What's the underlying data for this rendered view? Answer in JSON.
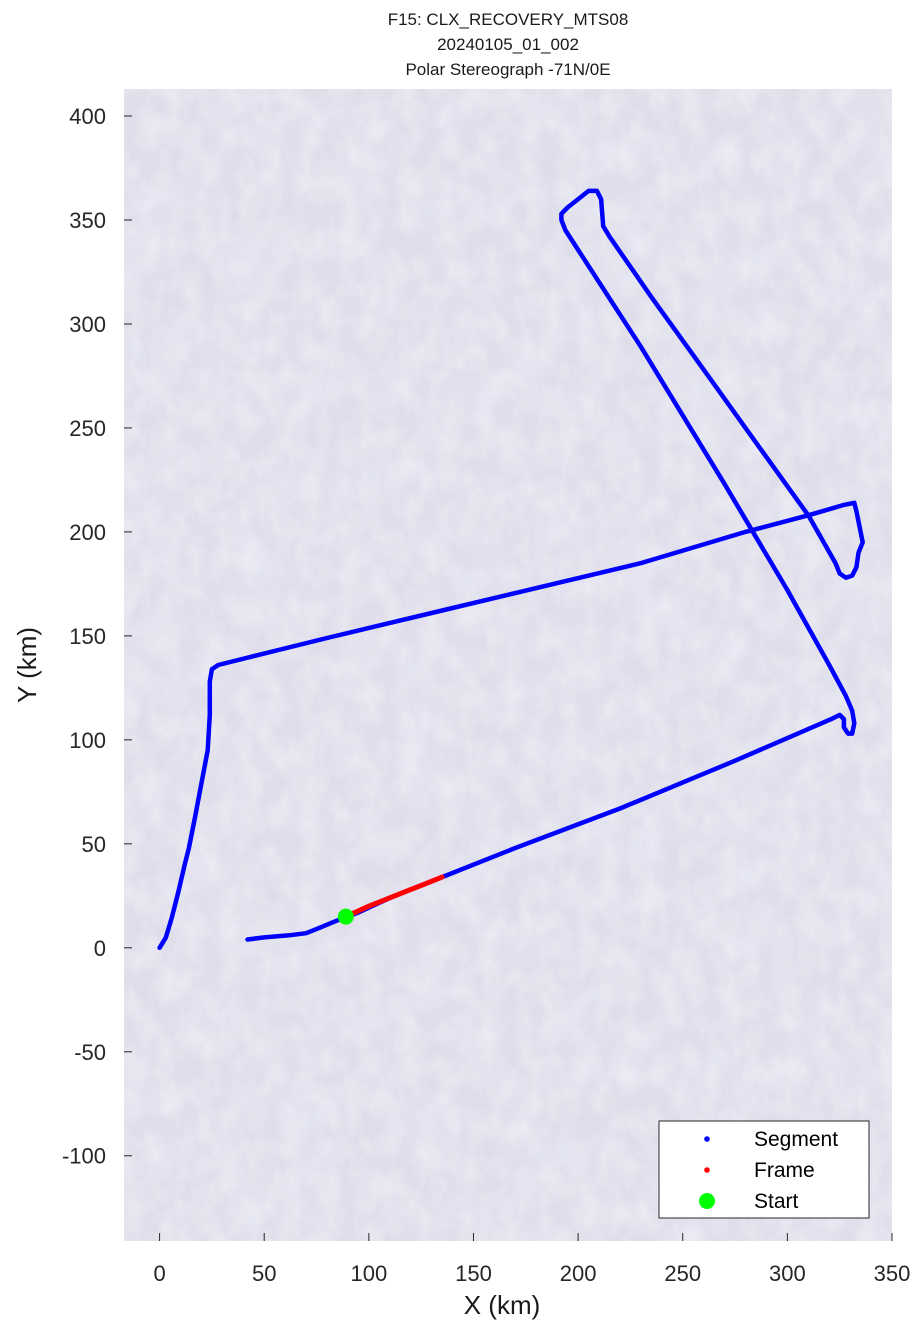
{
  "figure": {
    "title_lines": [
      "F15: CLX_RECOVERY_MTS08",
      "20240105_01_002",
      "Polar Stereograph -71N/0E"
    ],
    "xlabel": "X (km)",
    "ylabel": "Y (km)",
    "background": "satellite ice-sheet imagery (pale lavender-grey, mottled)"
  },
  "chart_data": {
    "type": "line",
    "title": "F15: CLX_RECOVERY_MTS08 / 20240105_01_002 / Polar Stereograph -71N/0E",
    "xlabel": "X (km)",
    "ylabel": "Y (km)",
    "xlim": [
      -17,
      350
    ],
    "ylim": [
      -141,
      413
    ],
    "xticks": [
      0,
      50,
      100,
      150,
      200,
      250,
      300,
      350
    ],
    "yticks": [
      -100,
      -50,
      0,
      50,
      100,
      150,
      200,
      250,
      300,
      350,
      400
    ],
    "grid": false,
    "legend_position": "bottom-right",
    "legend": [
      {
        "label": "Segment",
        "color": "#0000ff",
        "marker": "dot"
      },
      {
        "label": "Frame",
        "color": "#ff0000",
        "marker": "dot"
      },
      {
        "label": "Start",
        "color": "#00ff00",
        "marker": "large-dot"
      }
    ],
    "series": [
      {
        "name": "Segment",
        "color": "#0000ff",
        "points": [
          [
            0,
            0
          ],
          [
            3,
            5
          ],
          [
            6,
            15
          ],
          [
            9,
            27
          ],
          [
            12,
            40
          ],
          [
            14,
            48
          ],
          [
            17,
            63
          ],
          [
            20,
            79
          ],
          [
            23,
            95
          ],
          [
            24,
            112
          ],
          [
            24,
            128
          ],
          [
            25,
            134
          ],
          [
            28,
            136
          ],
          [
            80,
            149
          ],
          [
            130,
            161
          ],
          [
            180,
            173
          ],
          [
            230,
            185
          ],
          [
            280,
            200
          ],
          [
            310,
            208
          ],
          [
            327,
            213
          ],
          [
            332,
            214
          ],
          [
            333,
            210
          ],
          [
            335,
            200
          ],
          [
            336,
            195
          ],
          [
            334,
            190
          ],
          [
            333,
            183
          ],
          [
            331,
            179
          ],
          [
            328,
            178
          ],
          [
            325,
            180
          ],
          [
            323,
            185
          ],
          [
            310,
            208
          ],
          [
            290,
            236
          ],
          [
            260,
            278
          ],
          [
            235,
            313
          ],
          [
            215,
            342
          ],
          [
            212,
            347
          ],
          [
            211,
            360
          ],
          [
            209,
            364
          ],
          [
            205,
            364
          ],
          [
            195,
            356
          ],
          [
            192,
            353
          ],
          [
            192,
            350
          ],
          [
            194,
            345
          ],
          [
            230,
            289
          ],
          [
            270,
            223
          ],
          [
            300,
            172
          ],
          [
            320,
            136
          ],
          [
            328,
            121
          ],
          [
            331,
            114
          ],
          [
            332,
            108
          ],
          [
            331,
            103
          ],
          [
            329,
            103
          ],
          [
            327,
            106
          ],
          [
            327,
            110
          ],
          [
            325,
            112
          ],
          [
            321,
            110
          ],
          [
            275,
            90
          ],
          [
            220,
            67
          ],
          [
            170,
            48
          ],
          [
            135,
            34
          ],
          [
            110,
            24
          ],
          [
            95,
            17
          ],
          [
            87,
            14
          ],
          [
            75,
            9
          ],
          [
            70,
            7
          ],
          [
            62,
            6
          ],
          [
            50,
            5
          ],
          [
            42,
            4
          ]
        ]
      },
      {
        "name": "Frame",
        "color": "#ff0000",
        "points": [
          [
            89,
            15
          ],
          [
            100,
            20
          ],
          [
            115,
            26
          ],
          [
            125,
            30
          ],
          [
            135,
            34
          ]
        ]
      },
      {
        "name": "Start",
        "color": "#00ff00",
        "points": [
          [
            89,
            15
          ]
        ]
      }
    ]
  }
}
